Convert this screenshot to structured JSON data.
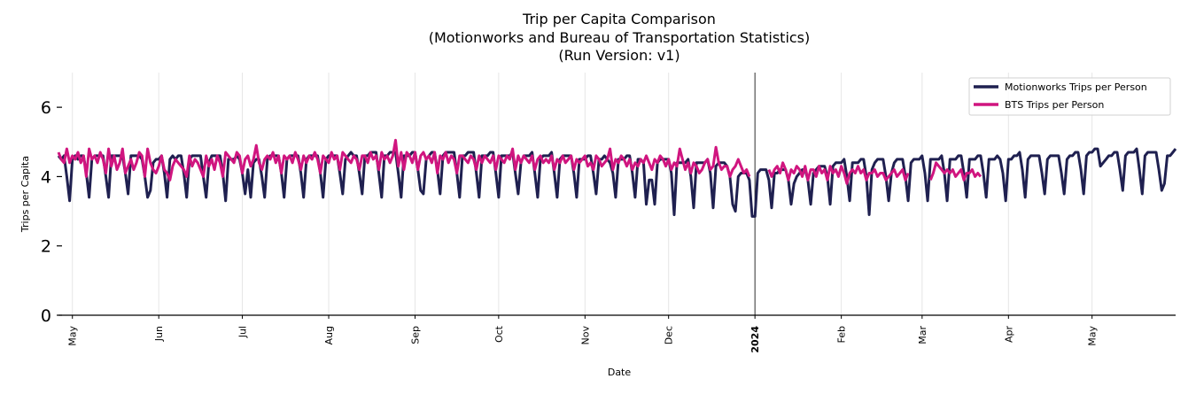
{
  "chart_data": {
    "type": "line",
    "title": "Trip per Capita Comparison",
    "subtitle": "(Motionworks and Bureau of Transportation Statistics)",
    "subtitle2": "(Run Version: v1)",
    "xlabel": "Date",
    "ylabel": "Trips per Capita",
    "xlim": [
      "2023-04-26",
      "2024-05-31"
    ],
    "ylim": [
      0,
      7
    ],
    "y_ticks": [
      0,
      2,
      4,
      6
    ],
    "x_ticks": [
      {
        "label": "May",
        "date": "2023-05-01"
      },
      {
        "label": "Jun",
        "date": "2023-06-01"
      },
      {
        "label": "Jul",
        "date": "2023-07-01"
      },
      {
        "label": "Aug",
        "date": "2023-08-01"
      },
      {
        "label": "Sep",
        "date": "2023-09-01"
      },
      {
        "label": "Oct",
        "date": "2023-10-01"
      },
      {
        "label": "Nov",
        "date": "2023-11-01"
      },
      {
        "label": "Dec",
        "date": "2023-12-01"
      },
      {
        "label": "2024",
        "date": "2024-01-01",
        "bold": true
      },
      {
        "label": "Feb",
        "date": "2024-02-01"
      },
      {
        "label": "Mar",
        "date": "2024-03-01"
      },
      {
        "label": "Apr",
        "date": "2024-04-01"
      },
      {
        "label": "May",
        "date": "2024-05-01"
      }
    ],
    "vline_date": "2024-01-01",
    "grid": "vertical",
    "legend_position": "top-right",
    "frequency": "daily",
    "series": [
      {
        "name": "Motionworks Trips per Person",
        "color": "#1f2050",
        "values": [
          4.6,
          4.5,
          4.6,
          4.0,
          3.3,
          4.5,
          4.6,
          4.5,
          4.6,
          4.6,
          4.1,
          3.4,
          4.5,
          4.6,
          4.6,
          4.6,
          4.6,
          4.0,
          3.4,
          4.6,
          4.6,
          4.6,
          4.6,
          4.6,
          4.1,
          3.5,
          4.6,
          4.6,
          4.6,
          4.6,
          4.5,
          4.0,
          3.4,
          3.6,
          4.4,
          4.5,
          4.5,
          4.6,
          4.1,
          3.4,
          4.5,
          4.6,
          4.5,
          4.6,
          4.6,
          4.1,
          3.4,
          4.5,
          4.6,
          4.6,
          4.6,
          4.6,
          4.0,
          3.4,
          4.4,
          4.6,
          4.6,
          4.6,
          4.6,
          4.1,
          3.3,
          4.5,
          4.5,
          4.5,
          4.6,
          4.5,
          4.1,
          3.5,
          4.2,
          3.4,
          4.4,
          4.5,
          4.5,
          4.0,
          3.4,
          4.5,
          4.6,
          4.6,
          4.6,
          4.6,
          4.1,
          3.4,
          4.5,
          4.6,
          4.6,
          4.6,
          4.6,
          4.1,
          3.4,
          4.5,
          4.6,
          4.6,
          4.6,
          4.6,
          4.1,
          3.4,
          4.5,
          4.6,
          4.6,
          4.6,
          4.6,
          4.1,
          3.5,
          4.5,
          4.6,
          4.7,
          4.6,
          4.6,
          4.1,
          3.5,
          4.6,
          4.6,
          4.7,
          4.7,
          4.7,
          4.1,
          3.4,
          4.6,
          4.6,
          4.7,
          4.7,
          4.7,
          4.1,
          3.4,
          4.6,
          4.6,
          4.6,
          4.7,
          4.7,
          4.2,
          3.6,
          3.5,
          4.5,
          4.6,
          4.7,
          4.7,
          4.2,
          3.5,
          4.6,
          4.7,
          4.7,
          4.7,
          4.7,
          4.1,
          3.4,
          4.6,
          4.6,
          4.7,
          4.7,
          4.7,
          4.1,
          3.4,
          4.6,
          4.6,
          4.6,
          4.7,
          4.7,
          4.1,
          3.4,
          4.6,
          4.6,
          4.6,
          4.6,
          4.7,
          4.1,
          3.5,
          4.4,
          4.6,
          4.6,
          4.6,
          4.7,
          4.1,
          3.4,
          4.5,
          4.6,
          4.6,
          4.6,
          4.7,
          4.1,
          3.4,
          4.5,
          4.6,
          4.6,
          4.6,
          4.6,
          4.1,
          3.4,
          4.5,
          4.5,
          4.5,
          4.6,
          4.6,
          4.1,
          3.5,
          4.5,
          4.5,
          4.6,
          4.5,
          4.4,
          4.1,
          3.4,
          4.5,
          4.5,
          4.5,
          4.6,
          4.6,
          4.1,
          3.4,
          4.5,
          4.5,
          4.4,
          3.2,
          3.9,
          3.9,
          3.2,
          4.4,
          4.5,
          4.5,
          4.5,
          4.5,
          4.1,
          2.9,
          4.4,
          4.4,
          4.4,
          4.4,
          4.5,
          4.0,
          3.1,
          4.4,
          4.4,
          4.4,
          4.4,
          4.5,
          4.1,
          3.1,
          4.3,
          4.4,
          4.4,
          4.4,
          4.3,
          4.0,
          3.2,
          3.0,
          4.0,
          4.1,
          4.1,
          4.1,
          3.9,
          2.85,
          2.85,
          4.1,
          4.2,
          4.2,
          4.2,
          3.9,
          3.1,
          4.1,
          4.1,
          4.2,
          4.2,
          4.2,
          3.9,
          3.2,
          3.8,
          4.0,
          4.1,
          4.2,
          4.2,
          3.9,
          3.2,
          4.1,
          4.2,
          4.3,
          4.3,
          4.3,
          4.0,
          3.2,
          4.3,
          4.4,
          4.4,
          4.4,
          4.5,
          4.0,
          3.3,
          4.4,
          4.4,
          4.4,
          4.5,
          4.5,
          4.0,
          2.9,
          4.2,
          4.4,
          4.5,
          4.5,
          4.5,
          4.0,
          3.3,
          4.1,
          4.4,
          4.5,
          4.5,
          4.5,
          4.0,
          3.3,
          4.4,
          4.5,
          4.5,
          4.5,
          4.6,
          4.1,
          3.3,
          4.5,
          4.5,
          4.5,
          4.5,
          4.6,
          4.1,
          3.3,
          4.5,
          4.5,
          4.5,
          4.6,
          4.6,
          4.1,
          3.4,
          4.5,
          4.5,
          4.5,
          4.6,
          4.6,
          4.1,
          3.4,
          4.5,
          4.5,
          4.5,
          4.6,
          4.5,
          4.1,
          3.3,
          4.5,
          4.5,
          4.6,
          4.6,
          4.7,
          4.2,
          3.4,
          4.5,
          4.6,
          4.6,
          4.6,
          4.6,
          4.1,
          3.5,
          4.5,
          4.6,
          4.6,
          4.6,
          4.6,
          4.1,
          3.5,
          4.5,
          4.6,
          4.6,
          4.7,
          4.7,
          4.2,
          3.5,
          4.6,
          4.7,
          4.7,
          4.8,
          4.8,
          4.3,
          4.4,
          4.5,
          4.6,
          4.6,
          4.7,
          4.7,
          4.2,
          3.6,
          4.6,
          4.7,
          4.7,
          4.7,
          4.8,
          4.2,
          3.5,
          4.6,
          4.7,
          4.7,
          4.7,
          4.7,
          4.2,
          3.6,
          3.8,
          4.6,
          4.6,
          4.7,
          4.8
        ]
      },
      {
        "name": "BTS Trips per Person",
        "color": "#d0157f",
        "values": [
          4.7,
          4.5,
          4.4,
          4.8,
          4.4,
          4.6,
          4.5,
          4.7,
          4.4,
          4.6,
          4.0,
          4.8,
          4.5,
          4.6,
          4.4,
          4.7,
          4.5,
          4.1,
          4.8,
          4.3,
          4.6,
          4.2,
          4.4,
          4.8,
          4.1,
          4.3,
          4.5,
          4.2,
          4.4,
          4.7,
          4.6,
          4.0,
          4.8,
          4.4,
          4.2,
          4.1,
          4.3,
          4.6,
          4.2,
          4.1,
          3.9,
          4.3,
          4.5,
          4.4,
          4.3,
          4.2,
          4.0,
          4.6,
          4.3,
          4.5,
          4.4,
          4.2,
          4.0,
          4.6,
          4.3,
          4.5,
          4.2,
          4.6,
          4.4,
          4.0,
          4.7,
          4.6,
          4.5,
          4.4,
          4.7,
          4.6,
          4.1,
          4.5,
          4.6,
          4.3,
          4.5,
          4.9,
          4.4,
          4.2,
          4.5,
          4.6,
          4.5,
          4.7,
          4.4,
          4.6,
          4.1,
          4.6,
          4.5,
          4.6,
          4.4,
          4.7,
          4.5,
          4.2,
          4.6,
          4.4,
          4.6,
          4.5,
          4.7,
          4.5,
          4.1,
          4.6,
          4.5,
          4.4,
          4.7,
          4.5,
          4.6,
          4.2,
          4.7,
          4.6,
          4.5,
          4.4,
          4.6,
          4.5,
          4.2,
          4.6,
          4.6,
          4.4,
          4.7,
          4.5,
          4.6,
          4.2,
          4.7,
          4.5,
          4.6,
          4.4,
          4.6,
          5.05,
          4.3,
          4.7,
          4.2,
          4.7,
          4.6,
          4.4,
          4.7,
          4.2,
          4.6,
          4.7,
          4.5,
          4.6,
          4.4,
          4.7,
          4.1,
          4.6,
          4.5,
          4.7,
          4.4,
          4.6,
          4.5,
          4.1,
          4.6,
          4.6,
          4.5,
          4.4,
          4.6,
          4.5,
          4.2,
          4.6,
          4.4,
          4.6,
          4.5,
          4.4,
          4.6,
          4.2,
          4.6,
          4.5,
          4.4,
          4.6,
          4.5,
          4.8,
          4.2,
          4.6,
          4.4,
          4.6,
          4.5,
          4.4,
          4.6,
          4.2,
          4.5,
          4.6,
          4.4,
          4.5,
          4.4,
          4.6,
          4.2,
          4.5,
          4.4,
          4.6,
          4.4,
          4.5,
          4.6,
          4.2,
          4.5,
          4.4,
          4.5,
          4.6,
          4.3,
          4.4,
          4.2,
          4.6,
          4.5,
          4.3,
          4.4,
          4.5,
          4.8,
          4.2,
          4.5,
          4.4,
          4.6,
          4.5,
          4.3,
          4.5,
          4.2,
          4.4,
          4.3,
          4.5,
          4.4,
          4.6,
          4.4,
          4.2,
          4.5,
          4.4,
          4.6,
          4.5,
          4.3,
          4.5,
          4.2,
          4.4,
          4.3,
          4.8,
          4.5,
          4.2,
          4.4,
          4.1,
          4.4,
          4.3,
          4.1,
          4.2,
          4.4,
          4.5,
          4.2,
          4.3,
          4.85,
          4.4,
          4.2,
          4.3,
          4.3,
          4.0,
          4.2,
          4.3,
          4.5,
          4.3,
          4.1,
          4.2,
          4.0,
          null,
          null,
          null,
          null,
          null,
          null,
          4.2,
          4.0,
          4.2,
          4.3,
          4.1,
          4.4,
          4.2,
          3.9,
          4.2,
          4.1,
          4.3,
          4.2,
          4.0,
          4.3,
          3.9,
          4.2,
          4.2,
          4.0,
          4.3,
          4.1,
          4.2,
          3.9,
          4.3,
          4.1,
          4.2,
          4.0,
          4.3,
          4.1,
          3.8,
          4.1,
          4.2,
          4.1,
          4.3,
          4.1,
          4.2,
          3.9,
          4.1,
          4.1,
          4.2,
          4.0,
          4.1,
          4.1,
          3.9,
          4.0,
          4.1,
          4.2,
          4.0,
          4.1,
          4.2,
          3.9,
          4.1,
          null,
          null,
          null,
          null,
          null,
          null,
          null,
          3.9,
          4.1,
          4.4,
          4.3,
          4.2,
          4.1,
          4.2,
          4.1,
          4.2,
          4.0,
          4.1,
          4.2,
          3.9,
          4.1,
          4.1,
          4.2,
          4.0,
          4.1,
          4.0
        ]
      }
    ]
  }
}
